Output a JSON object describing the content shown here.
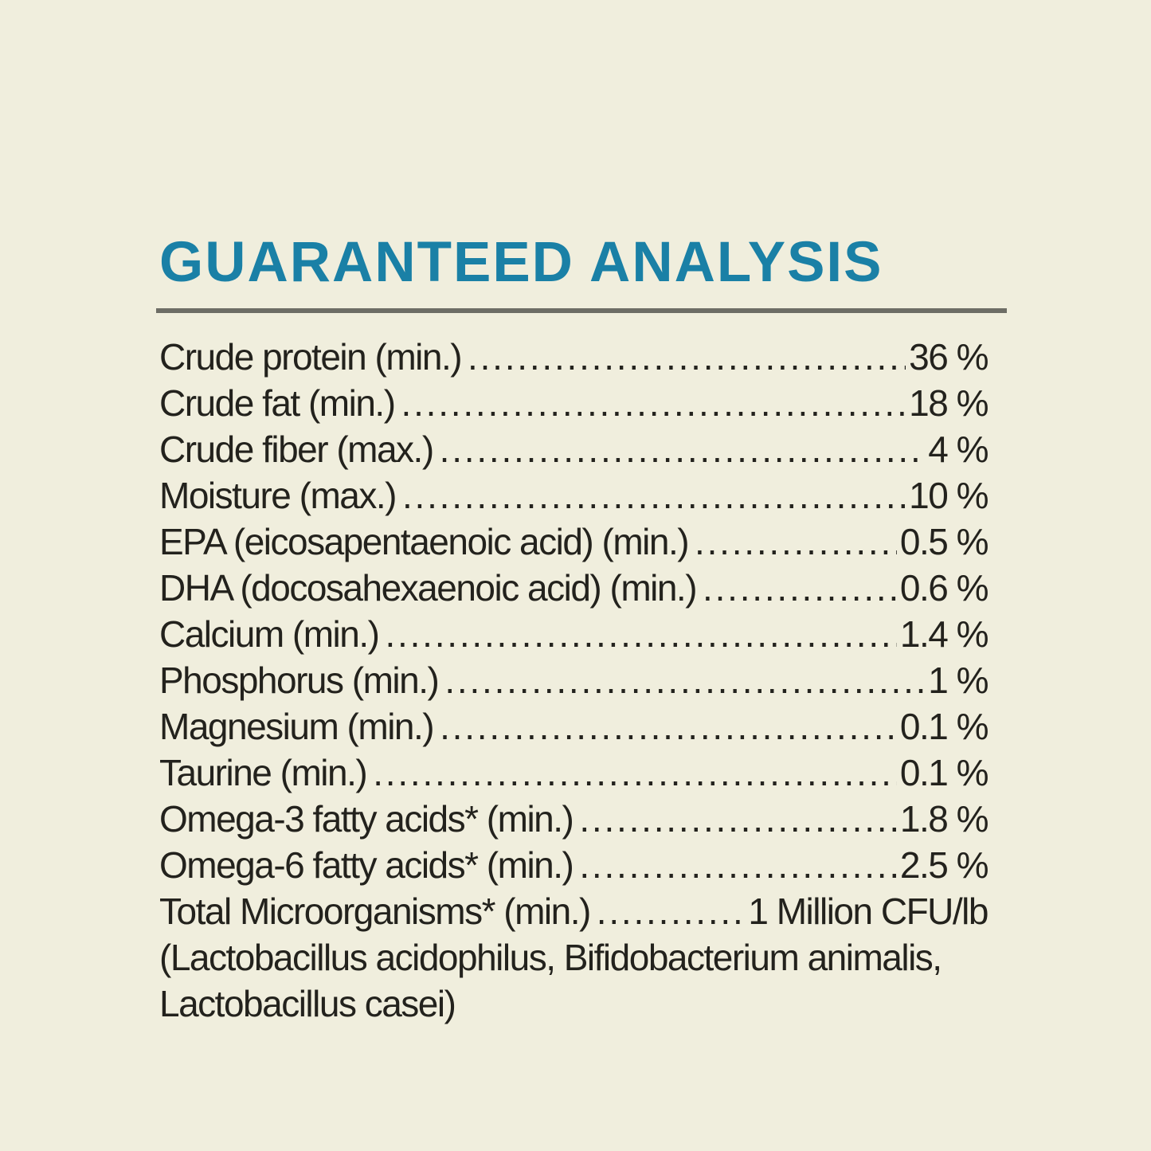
{
  "page": {
    "background_color": "#f0eedd",
    "text_color": "#23221d",
    "accent_color": "#1a80a6",
    "rule_color": "#6d6d65"
  },
  "header": {
    "title": "GUARANTEED ANALYSIS"
  },
  "analysis": {
    "dot_leader": ". . . . . . . . . . . . . . . . . . . . . . . . . . . . . . . . . . . . . . . . . . . . . . . . . . . . . . . . . . . . . . . . . . . . . . . . . . . . ",
    "rows": [
      {
        "label": "Crude protein (min.)",
        "value": "36 %"
      },
      {
        "label": "Crude fat (min.)",
        "value": "18 %"
      },
      {
        "label": "Crude fiber (max.)",
        "value": "4 %"
      },
      {
        "label": "Moisture (max.)",
        "value": "10 %"
      },
      {
        "label": "EPA (eicosapentaenoic acid) (min.)",
        "value": "0.5 %"
      },
      {
        "label": "DHA (docosahexaenoic acid) (min.)",
        "value": "0.6 %"
      },
      {
        "label": "Calcium (min.)",
        "value": "1.4 %"
      },
      {
        "label": "Phosphorus (min.)",
        "value": "1 %"
      },
      {
        "label": "Magnesium (min.)",
        "value": "0.1 %"
      },
      {
        "label": "Taurine (min.)",
        "value": "0.1 %"
      },
      {
        "label": "Omega-3 fatty acids* (min.)",
        "value": "1.8 %"
      },
      {
        "label": "Omega-6 fatty acids* (min.)",
        "value": "2.5 %"
      },
      {
        "label": "Total Microorganisms* (min.)",
        "value": "1 Million CFU/lb"
      }
    ],
    "footnote_lines": [
      "(Lactobacillus acidophilus, Bifidobacterium animalis,",
      "Lactobacillus casei)"
    ]
  }
}
